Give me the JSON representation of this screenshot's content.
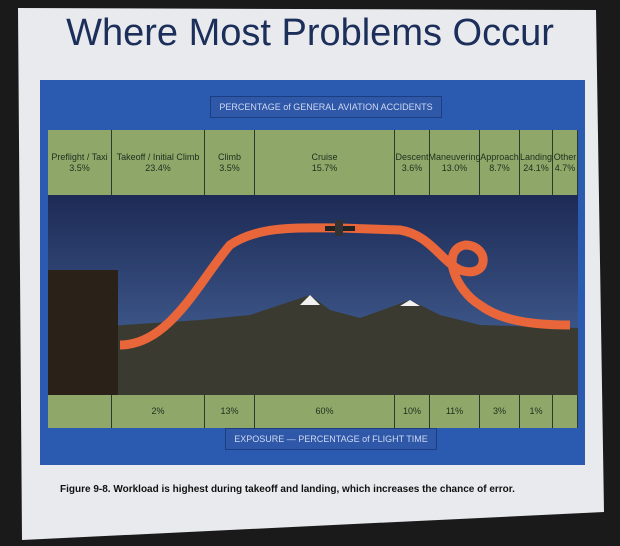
{
  "slide": {
    "title": "Where Most Problems Occur",
    "header": "PERCENTAGE of GENERAL AVIATION ACCIDENTS",
    "footer": "EXPOSURE — PERCENTAGE of FLIGHT TIME",
    "caption": "Figure 9-8. Workload is highest during takeoff and landing, which increases the chance of error.",
    "phases": [
      {
        "name": "Preflight / Taxi",
        "accidents": "3.5%"
      },
      {
        "name": "Takeoff / Initial Climb",
        "accidents": "23.4%",
        "exposure": "2%"
      },
      {
        "name": "Climb",
        "accidents": "3.5%",
        "exposure": "13%"
      },
      {
        "name": "Cruise",
        "accidents": "15.7%",
        "exposure": "60%"
      },
      {
        "name": "Descent",
        "accidents": "3.6%",
        "exposure": "10%"
      },
      {
        "name": "Maneuvering",
        "accidents": "13.0%",
        "exposure": "11%"
      },
      {
        "name": "Approach",
        "accidents": "8.7%",
        "exposure": "3%"
      },
      {
        "name": "Landing",
        "accidents": "24.1%",
        "exposure": "1%"
      },
      {
        "name": "Other",
        "accidents": "4.7%"
      }
    ]
  }
}
